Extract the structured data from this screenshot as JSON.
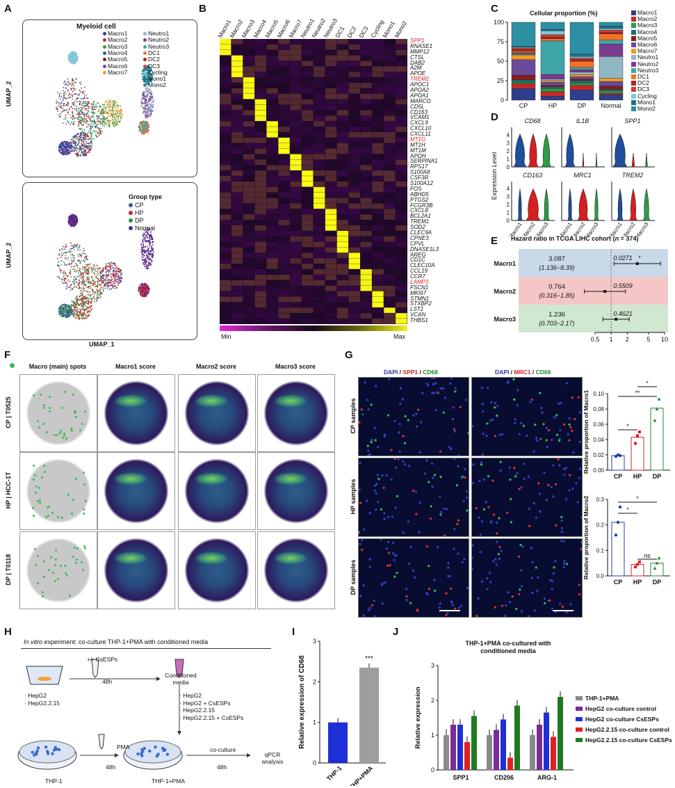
{
  "panels": [
    "A",
    "B",
    "C",
    "D",
    "E",
    "F",
    "G",
    "H",
    "I",
    "J"
  ],
  "A": {
    "title": "Myeloid cell",
    "axis_x": "UMAP_1",
    "axis_y": "UMAP_2",
    "legend_clusters": [
      "Macro1",
      "Macro2",
      "Macro3",
      "Macro4",
      "Macro5",
      "Macro6",
      "Macro7",
      "Neutro1",
      "Neutro2",
      "Neutro3",
      "DC1",
      "DC2",
      "DC3",
      "Cycling",
      "Mono1",
      "Mono2"
    ],
    "cluster_colors": [
      "#2e3f8f",
      "#c62828",
      "#2e9b47",
      "#1b6f7a",
      "#8b1a1a",
      "#6a4a9a",
      "#f39a24",
      "#8fb8c4",
      "#7c3b8f",
      "#3fa6a8",
      "#f0732a",
      "#b81f1f",
      "#d43c3c",
      "#7fc8d6",
      "#1f6e8c",
      "#2c8fa3"
    ],
    "group_title": "Group type",
    "groups": [
      "CP",
      "HP",
      "DP",
      "Normal"
    ],
    "group_colors": [
      "#3a5a9c",
      "#d42020",
      "#2e8b4a",
      "#5b2a86"
    ]
  },
  "B": {
    "columns": [
      "Macro1",
      "Macro2",
      "Macro3",
      "Macro4",
      "Macro5",
      "Macro6",
      "Macro7",
      "Neutro1",
      "Neutro2",
      "Neutro3",
      "DC1",
      "DC2",
      "DC3",
      "Cycling",
      "Mono1",
      "Mono2"
    ],
    "genes": [
      "SPP1",
      "RNASE1",
      "MMP12",
      "CTSL",
      "DAB2",
      "A2M",
      "APOE",
      "TREM2",
      "APOC1",
      "APOA2",
      "APOA1",
      "MARCO",
      "CD5L",
      "CD163",
      "VCAM1",
      "CXCL9",
      "CXCL10",
      "CXCL11",
      "MT1G",
      "MT1H",
      "MT1M",
      "APOH",
      "SERPINA1",
      "RPS17",
      "S100A8",
      "CSF3R",
      "S100A12",
      "FOS",
      "ABHD5",
      "PTGS2",
      "FCGR3B",
      "CXCL8",
      "BCL2A1",
      "TREM1",
      "SOD2",
      "CLEC9A",
      "CPNE3",
      "CPVL",
      "DNASE1L3",
      "AREG",
      "CD1C",
      "CLEC10A",
      "CCL19",
      "CCR7",
      "LAMP3",
      "FSCN1",
      "MKI67",
      "STMN1",
      "STXBP2",
      "LST1",
      "VCAN",
      "THBS1"
    ],
    "highlight_genes": [
      "SPP1",
      "TREM2",
      "MT1G",
      "LAMP3"
    ],
    "scale_min": "Min",
    "scale_max": "Max"
  },
  "C": {
    "title": "Cellular proportion (%)",
    "legend": [
      "Macro1",
      "Macro2",
      "Macro3",
      "Macro4",
      "Macro5",
      "Macro6",
      "Macro7",
      "Neutro1",
      "Neutro2",
      "Neutro3",
      "DC1",
      "DC2",
      "DC3",
      "Cycling",
      "Mono1",
      "Mono2"
    ],
    "yticks": [
      "0",
      "25",
      "50",
      "75",
      "100"
    ]
  },
  "D": {
    "ylabel": "Expression Level",
    "genes_top": [
      "CD68",
      "IL1B",
      "SPP1"
    ],
    "genes_bottom": [
      "CD163",
      "MRC1",
      "TREM2"
    ],
    "xcats": [
      "Macro1",
      "Macro2",
      "Macro3"
    ],
    "yticks": [
      "0",
      "1",
      "2",
      "3",
      "4"
    ]
  },
  "E": {
    "title_prefix": "Hazard ratio in TCGA LIHC cohort (",
    "title_n": "n",
    "title_suffix": " = 374)",
    "rows": [
      {
        "name": "Macro1",
        "hr": "3.087",
        "ci": "(1.136−8.39)",
        "p": "0.0271",
        "sig": "*"
      },
      {
        "name": "Macro2",
        "hr": "0.764",
        "ci": "(0.316−1.85)",
        "p": "0.5509",
        "sig": ""
      },
      {
        "name": "Macro3",
        "hr": "1.236",
        "ci": "(0.703−2.17)",
        "p": "0.4621",
        "sig": ""
      }
    ],
    "xticks": [
      "0.5",
      "1",
      "2",
      "5",
      "10"
    ]
  },
  "F": {
    "legend_dot_label": "Macro (main) spots",
    "col_headers": [
      "Macro (main) spots",
      "Macro1 score",
      "Macro2 score",
      "Macro3 score"
    ],
    "row_labels": [
      "CP | T0525",
      "HP | HCC-1T",
      "DP | T0118"
    ]
  },
  "G": {
    "stain1": {
      "a": "DAPI",
      "b": "SPP1",
      "c": "CD68"
    },
    "stain2": {
      "a": "DAPI",
      "b": "MRC1",
      "c": "CD68"
    },
    "row_labels": [
      "CP samples",
      "HP samples",
      "DP samples"
    ],
    "plot1_ylabel": "Relative proportion of Macro1",
    "plot2_ylabel": "Relative proportion of Macro2",
    "xcats": [
      "CP",
      "HP",
      "DP"
    ],
    "plot1_yticks": [
      "0.00",
      "0.02",
      "0.04",
      "0.06",
      "0.08",
      "0.10"
    ],
    "plot2_yticks": [
      "0.0",
      "0.1",
      "0.2",
      "0.3"
    ],
    "sig1": [
      "*",
      "**",
      "*"
    ],
    "sig2": [
      "*",
      "*",
      "ns"
    ]
  },
  "H": {
    "title_italic": "In vitro",
    "title_rest": " experiment: co-culture THP-1+PMA with conditioned media",
    "cells": [
      "· HepG2",
      "· HepG2.2.15"
    ],
    "csesp": "+/- CsESPs",
    "time1": "48h",
    "cond": "Conditioned media",
    "cond_list": [
      "· HepG2",
      "· HepG2 + CsESPs",
      "· HepG2.2.15",
      "· HepG2.2.15 + CsESPs"
    ],
    "pma": "PMA",
    "time2": "48h",
    "thp1": "THP-1",
    "thp1pma": "THP-1+PMA",
    "coculture": "co-culture",
    "time3": "48h",
    "qpcr": "qPCR analysis"
  },
  "I": {
    "chart_data": {
      "type": "bar",
      "categories": [
        "THP-1",
        "THP+PMA"
      ],
      "values": [
        1.0,
        2.35
      ],
      "ylabel": "Relative expression of CD68",
      "ylim": [
        0,
        3
      ],
      "yticks": [
        "0",
        "1",
        "2",
        "3"
      ],
      "sig": "***",
      "colors": [
        "#1f2fd6",
        "#9e9e9e"
      ]
    }
  },
  "J": {
    "title": "THP-1+PMA co-cultured with conditioned media",
    "chart_data": {
      "type": "bar",
      "categories": [
        "SPP1",
        "CD206",
        "ARG-1"
      ],
      "ylabel": "Relative expression",
      "ylim": [
        0,
        3
      ],
      "yticks": [
        "0",
        "1",
        "2",
        "3"
      ],
      "series": [
        {
          "name": "THP-1+PMA",
          "color": "#8a8a8a",
          "values": [
            1.0,
            1.0,
            1.0
          ]
        },
        {
          "name": "HepG2 co-culture control",
          "color": "#7b2a9a",
          "values": [
            1.3,
            1.15,
            1.3
          ]
        },
        {
          "name": "HepG2 co-culture CsESPs",
          "color": "#1f2fd6",
          "values": [
            1.3,
            1.45,
            1.65
          ]
        },
        {
          "name": "HepG2.2.15 co-culture control",
          "color": "#e02020",
          "values": [
            0.8,
            0.35,
            0.95
          ]
        },
        {
          "name": "HepG2.2.15 co-culture CsESPs",
          "color": "#1f7a1f",
          "values": [
            1.55,
            1.85,
            2.1
          ]
        }
      ]
    }
  }
}
